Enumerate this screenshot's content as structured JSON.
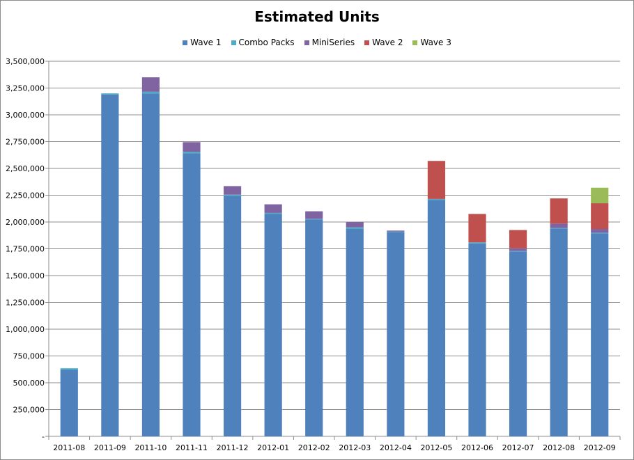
{
  "chart_data": {
    "type": "bar",
    "stacked": true,
    "title": "Estimated Units",
    "xlabel": "",
    "ylabel": "",
    "ylim": [
      0,
      3500000
    ],
    "yticks": [
      "-",
      "250,000",
      "500,000",
      "750,000",
      "1,000,000",
      "1,250,000",
      "1,500,000",
      "1,750,000",
      "2,000,000",
      "2,250,000",
      "2,500,000",
      "2,750,000",
      "3,000,000",
      "3,250,000",
      "3,500,000"
    ],
    "grid": true,
    "legend_position": "top",
    "categories": [
      "2011-08",
      "2011-09",
      "2011-10",
      "2011-11",
      "2011-12",
      "2012-01",
      "2012-02",
      "2012-03",
      "2012-04",
      "2012-05",
      "2012-06",
      "2012-07",
      "2012-08",
      "2012-09"
    ],
    "series": [
      {
        "name": "Wave 1",
        "color": "#4f81bd",
        "values": [
          620000,
          3190000,
          3200000,
          2640000,
          2245000,
          2075000,
          2025000,
          1935000,
          1905000,
          2205000,
          1800000,
          1725000,
          1940000,
          1895000
        ]
      },
      {
        "name": "Combo Packs",
        "color": "#4bacc6",
        "values": [
          15000,
          10000,
          15000,
          15000,
          10000,
          10000,
          5000,
          15000,
          5000,
          10000,
          10000,
          5000,
          5000,
          5000
        ]
      },
      {
        "name": "MiniSeries",
        "color": "#8064a2",
        "values": [
          0,
          0,
          135000,
          90000,
          80000,
          80000,
          70000,
          50000,
          10000,
          0,
          0,
          25000,
          40000,
          35000
        ]
      },
      {
        "name": "Wave 2",
        "color": "#c0504d",
        "values": [
          0,
          0,
          0,
          0,
          0,
          0,
          0,
          0,
          0,
          355000,
          265000,
          170000,
          235000,
          240000
        ]
      },
      {
        "name": "Wave 3",
        "color": "#9bbb59",
        "values": [
          0,
          0,
          0,
          0,
          0,
          0,
          0,
          0,
          0,
          0,
          0,
          0,
          0,
          145000
        ]
      }
    ]
  }
}
